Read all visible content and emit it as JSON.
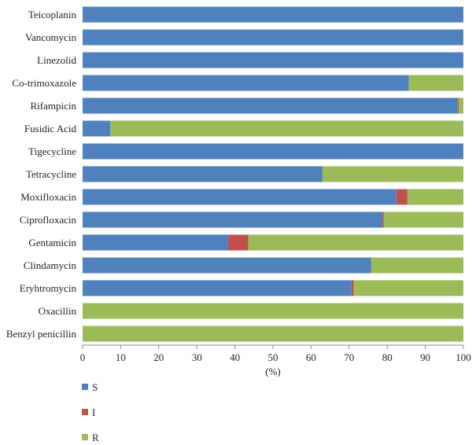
{
  "chart_data": {
    "type": "bar",
    "orientation": "horizontal",
    "stacked": true,
    "categories": [
      "Teicoplanin",
      "Vancomycin",
      "Linezolid",
      "Co-trimoxazole",
      "Rifampicin",
      "Fusidic Acid",
      "Tigecycline",
      "Tetracycline",
      "Moxifloxacin",
      "Ciprofloxacin",
      "Gentamicin",
      "Clindamycin",
      "Eryhtromycin",
      "Oxacillin",
      "Benzyl penicillin"
    ],
    "series": [
      {
        "name": "S",
        "color": "#4f81bd",
        "values": [
          100,
          100,
          100,
          85.7,
          98.5,
          7.3,
          100,
          63,
          82.4,
          78.7,
          38.2,
          75.8,
          70.6,
          0,
          0
        ]
      },
      {
        "name": "I",
        "color": "#c0504d",
        "values": [
          0,
          0,
          0,
          0,
          0.3,
          0,
          0,
          0,
          2.9,
          0.4,
          5.3,
          0,
          0.6,
          0,
          0
        ]
      },
      {
        "name": "R",
        "color": "#9bbb59",
        "values": [
          0,
          0,
          0,
          14.3,
          1.2,
          92.7,
          0,
          37,
          14.7,
          20.9,
          56.5,
          24.2,
          28.8,
          100,
          100
        ]
      }
    ],
    "xlabel": "(%)",
    "xlim": [
      0,
      100
    ],
    "xticks": [
      "0",
      "10",
      "20",
      "30",
      "40",
      "50",
      "60",
      "70",
      "80",
      "90",
      "100"
    ],
    "grid": false,
    "legend_position": "bottom-left"
  }
}
